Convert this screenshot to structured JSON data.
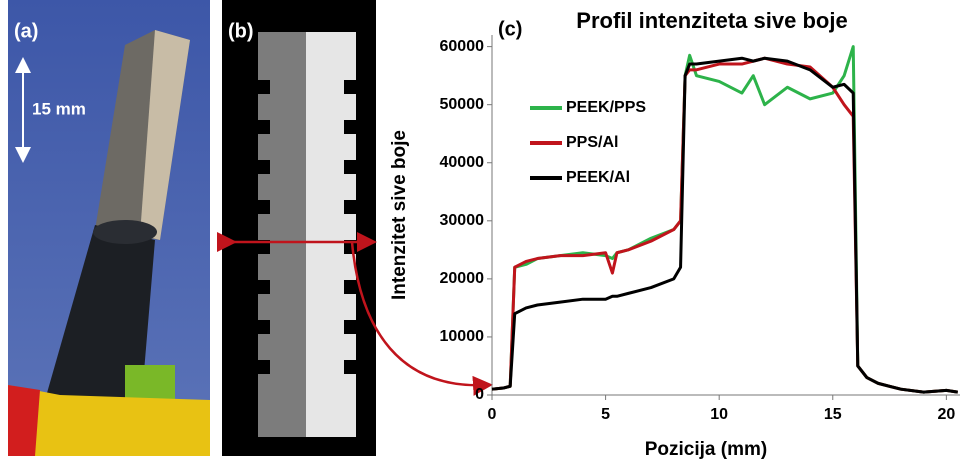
{
  "panels": {
    "a": {
      "label": "(a)",
      "scale": "15 mm"
    },
    "b": {
      "label": "(b)"
    }
  },
  "chart_data": {
    "type": "line",
    "panel_label": "(c)",
    "title": "Profil intenziteta sive boje",
    "x_label": "Pozicija (mm)",
    "y_label": "Intenzitet sive boje",
    "x": [
      0,
      0.5,
      0.8,
      1.0,
      1.5,
      2,
      3,
      4,
      5,
      5.3,
      5.5,
      6,
      7,
      8,
      8.3,
      8.5,
      8.7,
      9,
      10,
      11,
      11.5,
      12,
      13,
      14,
      15,
      15.5,
      15.9,
      16.1,
      16.5,
      17,
      18,
      19,
      20,
      20.5
    ],
    "series": [
      {
        "name": "PEEK/PPS",
        "color": "#2db34a",
        "values": [
          1000,
          1200,
          1500,
          22000,
          22500,
          23500,
          24000,
          24500,
          24000,
          23500,
          24500,
          25000,
          27000,
          28500,
          30000,
          55000,
          58500,
          55000,
          54000,
          52000,
          55000,
          50000,
          53000,
          51000,
          52000,
          55000,
          60000,
          5000,
          3000,
          2000,
          1000,
          500,
          800,
          500
        ]
      },
      {
        "name": "PPS/Al",
        "color": "#c0141c",
        "values": [
          1000,
          1200,
          1500,
          22000,
          23000,
          23500,
          24000,
          24000,
          24500,
          21000,
          24500,
          25000,
          26500,
          28500,
          30000,
          55000,
          56000,
          56000,
          57000,
          57000,
          57500,
          58000,
          57000,
          56500,
          53000,
          50000,
          48000,
          5000,
          3000,
          2000,
          1000,
          500,
          800,
          500
        ]
      },
      {
        "name": "PEEK/Al",
        "color": "#000000",
        "values": [
          1000,
          1200,
          1500,
          14000,
          15000,
          15500,
          16000,
          16500,
          16500,
          17000,
          17000,
          17500,
          18500,
          20000,
          22000,
          55000,
          57000,
          57000,
          57500,
          58000,
          57500,
          58000,
          57500,
          56000,
          53000,
          53500,
          52000,
          5000,
          3000,
          2000,
          1000,
          500,
          800,
          500
        ]
      }
    ],
    "xlim": [
      0,
      20.6
    ],
    "ylim": [
      0,
      62000
    ],
    "xticks": [
      0,
      5,
      10,
      15,
      20
    ],
    "yticks": [
      0,
      10000,
      20000,
      30000,
      40000,
      50000,
      60000
    ]
  }
}
